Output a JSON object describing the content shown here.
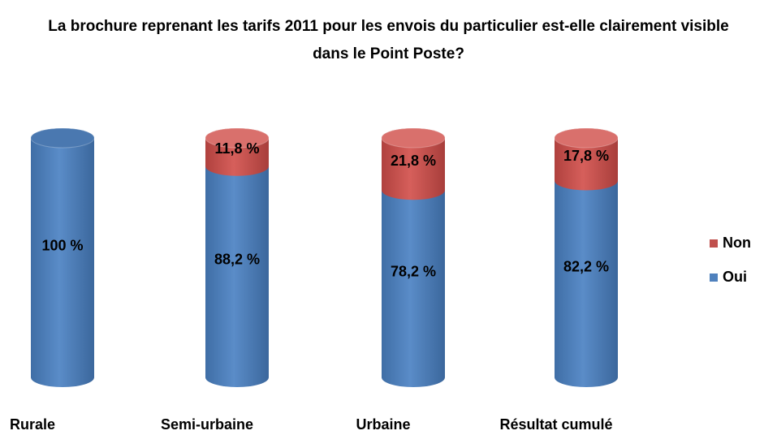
{
  "chart_data": {
    "type": "bar",
    "stacked": true,
    "title": "La brochure reprenant les tarifs 2011 pour les envois du particulier est-elle clairement visible dans le Point Poste?",
    "categories": [
      "Rurale",
      "Semi-urbaine",
      "Urbaine",
      "Résultat cumulé"
    ],
    "series": [
      {
        "name": "Oui",
        "color": "#4f81bd",
        "values": [
          100,
          88.2,
          78.2,
          82.2
        ],
        "value_labels": [
          "100 %",
          "88,2 %",
          "78,2 %",
          "82,2 %"
        ]
      },
      {
        "name": "Non",
        "color": "#c0504d",
        "values": [
          0,
          11.8,
          21.8,
          17.8
        ],
        "value_labels": [
          null,
          "11,8 %",
          "21,8 %",
          "17,8 %"
        ]
      }
    ],
    "ylim": [
      0,
      100
    ],
    "legend": "right"
  }
}
